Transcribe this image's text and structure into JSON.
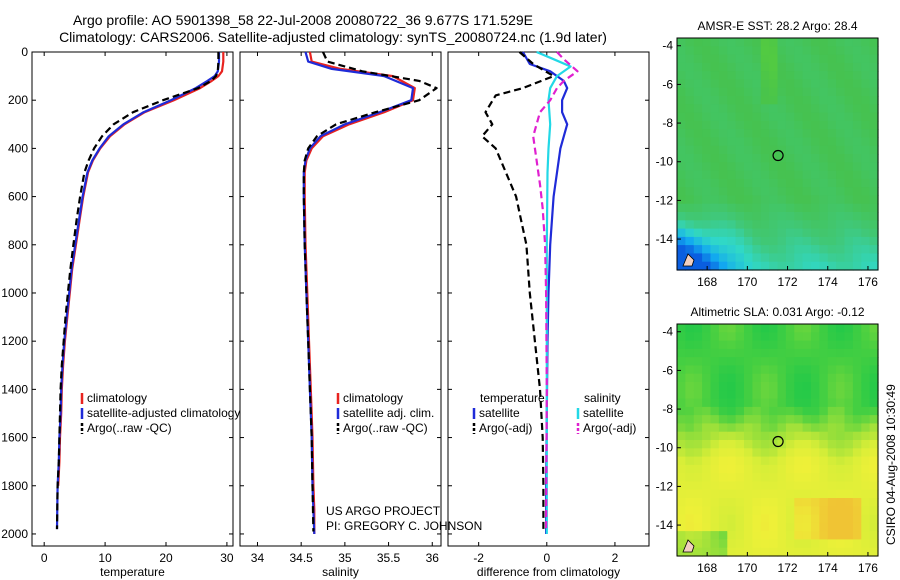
{
  "header": {
    "line1": "Argo profile: AO 5901398_58 22-Jul-2008 20080722_36 9.677S 171.529E",
    "line2": "Climatology: CARS2006. Satellite-adjusted climatology: synTS_20080724.nc (1.9d later)"
  },
  "colors": {
    "climatology": "#e8231f",
    "satellite": "#1f2bd8",
    "argo": "#000000",
    "satellite_salinity": "#22d8e6",
    "argo_adj_salinity": "#e020d0"
  },
  "chart_data": [
    {
      "type": "line",
      "id": "temperature",
      "xlabel": "temperature",
      "ylabel": "",
      "xlim": [
        -2,
        31
      ],
      "ylim": [
        2050,
        0
      ],
      "xticks": [
        0,
        10,
        20,
        30
      ],
      "yticks": [
        0,
        200,
        400,
        600,
        800,
        1000,
        1200,
        1400,
        1600,
        1800,
        2000
      ],
      "legend": [
        "climatology",
        "satellite-adjusted climatology",
        "Argo(..raw -QC)"
      ],
      "series": [
        {
          "name": "climatology",
          "color": "climatology",
          "dash": false,
          "x": [
            29.4,
            29.4,
            29.2,
            28.6,
            27.5,
            25.6,
            21.3,
            16.5,
            13.2,
            10.8,
            9.2,
            8.0,
            7.2,
            6.4,
            5.8,
            5.2,
            4.6,
            4.2,
            3.8,
            3.4,
            3.1,
            2.9,
            2.8,
            2.6,
            2.5,
            2.3
          ],
          "y": [
            0,
            40,
            80,
            100,
            120,
            150,
            200,
            250,
            300,
            350,
            400,
            450,
            500,
            600,
            700,
            800,
            900,
            1000,
            1100,
            1200,
            1300,
            1400,
            1500,
            1600,
            1700,
            1800
          ]
        },
        {
          "name": "satellite-adjusted climatology",
          "color": "satellite",
          "dash": false,
          "x": [
            28.7,
            28.7,
            28.5,
            28.0,
            26.8,
            24.9,
            20.8,
            16.3,
            13.0,
            10.6,
            9.1,
            7.9,
            7.1,
            6.3,
            5.7,
            5.1,
            4.5,
            4.1,
            3.7,
            3.3,
            3.0,
            2.8,
            2.7,
            2.5,
            2.4,
            2.2,
            2.1
          ],
          "y": [
            0,
            40,
            80,
            100,
            120,
            150,
            200,
            250,
            300,
            350,
            400,
            450,
            500,
            600,
            700,
            800,
            900,
            1000,
            1100,
            1200,
            1300,
            1400,
            1500,
            1600,
            1700,
            1800,
            1980
          ]
        },
        {
          "name": "Argo(..raw -QC)",
          "color": "argo",
          "dash": true,
          "x": [
            28.6,
            28.6,
            28.5,
            28.2,
            27.4,
            25.3,
            19.5,
            14.6,
            11.4,
            9.5,
            8.2,
            7.3,
            6.6,
            5.9,
            5.3,
            4.8,
            4.3,
            3.9,
            3.5,
            3.2,
            2.9,
            2.7,
            2.6,
            2.5,
            2.4,
            2.2,
            2.1
          ],
          "y": [
            0,
            40,
            80,
            100,
            120,
            150,
            200,
            250,
            300,
            350,
            400,
            450,
            500,
            600,
            700,
            800,
            900,
            1000,
            1100,
            1200,
            1300,
            1400,
            1500,
            1600,
            1700,
            1800,
            1980
          ]
        }
      ]
    },
    {
      "type": "line",
      "id": "salinity",
      "xlabel": "salinity",
      "ylabel": "",
      "xlim": [
        33.8,
        36.1
      ],
      "ylim": [
        2050,
        0
      ],
      "xticks": [
        34,
        34.5,
        35,
        35.5,
        36
      ],
      "yticks": [
        0,
        200,
        400,
        600,
        800,
        1000,
        1200,
        1400,
        1600,
        1800,
        2000
      ],
      "legend": [
        "climatology",
        "satellite adj. clim.",
        "Argo(..raw -QC)"
      ],
      "annotation": [
        "US ARGO PROJECT",
        "PI: GREGORY C. JOHNSON"
      ],
      "series": [
        {
          "name": "climatology",
          "color": "climatology",
          "dash": false,
          "x": [
            34.6,
            34.62,
            34.95,
            35.55,
            35.8,
            35.78,
            35.45,
            35.05,
            34.75,
            34.62,
            34.56,
            34.54,
            34.54,
            34.55,
            34.57,
            34.59,
            34.61,
            34.63,
            34.64,
            34.65,
            34.65
          ],
          "y": [
            0,
            40,
            70,
            100,
            150,
            200,
            250,
            300,
            350,
            400,
            450,
            500,
            600,
            800,
            1000,
            1200,
            1400,
            1600,
            1800,
            1900,
            2000
          ]
        },
        {
          "name": "satellite adj. clim.",
          "color": "satellite",
          "dash": false,
          "x": [
            34.55,
            34.58,
            34.85,
            35.45,
            35.78,
            35.76,
            35.4,
            35.0,
            34.72,
            34.6,
            34.55,
            34.53,
            34.53,
            34.54,
            34.56,
            34.58,
            34.6,
            34.62,
            34.63,
            34.64,
            34.65
          ],
          "y": [
            0,
            40,
            70,
            100,
            150,
            200,
            250,
            300,
            350,
            400,
            450,
            500,
            600,
            800,
            1000,
            1200,
            1400,
            1600,
            1800,
            1900,
            2000
          ]
        },
        {
          "name": "Argo(..raw -QC)",
          "color": "argo",
          "dash": true,
          "x": [
            34.75,
            34.8,
            35.2,
            35.85,
            36.05,
            35.85,
            35.35,
            34.9,
            34.68,
            34.58,
            34.54,
            34.53,
            34.53,
            34.54,
            34.56,
            34.58,
            34.6,
            34.62,
            34.63,
            34.64
          ],
          "y": [
            0,
            40,
            80,
            120,
            150,
            200,
            250,
            300,
            350,
            400,
            450,
            500,
            600,
            800,
            1000,
            1200,
            1400,
            1600,
            1800,
            1990
          ]
        }
      ]
    },
    {
      "type": "line",
      "id": "difference",
      "xlabel": "difference from climatology",
      "ylabel": "",
      "xlim": [
        -2.9,
        3.0
      ],
      "ylim": [
        2050,
        0
      ],
      "xticks": [
        -2,
        0,
        2
      ],
      "yticks": [
        0,
        200,
        400,
        600,
        800,
        1000,
        1200,
        1400,
        1600,
        1800,
        2000
      ],
      "legend_columns": [
        {
          "heading": "temperature",
          "items": [
            "satellite",
            "Argo(-adj)"
          ]
        },
        {
          "heading": "salinity",
          "items": [
            "satellite",
            "Argo(-adj)"
          ]
        }
      ],
      "series": [
        {
          "name": "temperature satellite",
          "color": "satellite",
          "dash": false,
          "x": [
            -0.7,
            -0.5,
            0.1,
            0.5,
            0.6,
            0.45,
            0.45,
            0.6,
            0.5,
            0.4,
            0.3,
            0.2,
            0.1,
            0.05,
            0.02,
            0.0,
            -0.02,
            -0.02
          ],
          "y": [
            0,
            50,
            80,
            120,
            150,
            200,
            250,
            300,
            350,
            400,
            500,
            600,
            800,
            1000,
            1200,
            1500,
            1800,
            2000
          ]
        },
        {
          "name": "temperature Argo(-adj)",
          "color": "argo",
          "dash": true,
          "x": [
            -0.8,
            -0.4,
            0.2,
            -0.7,
            -1.5,
            -1.8,
            -1.6,
            -1.9,
            -1.5,
            -1.2,
            -0.9,
            -0.75,
            -0.6,
            -0.5,
            -0.35,
            -0.2,
            -0.12,
            -0.1,
            -0.1
          ],
          "y": [
            0,
            50,
            100,
            150,
            180,
            250,
            300,
            350,
            400,
            500,
            600,
            700,
            800,
            1000,
            1200,
            1400,
            1600,
            1800,
            1990
          ]
        },
        {
          "name": "salinity satellite",
          "color": "satellite_salinity",
          "dash": false,
          "x": [
            -0.3,
            0.2,
            0.7,
            0.3,
            0.1,
            0.05,
            0.1,
            0.05,
            0.02,
            0.0,
            0.0,
            0.0,
            0.0
          ],
          "y": [
            0,
            30,
            60,
            100,
            150,
            200,
            300,
            400,
            500,
            800,
            1200,
            1600,
            2000
          ]
        },
        {
          "name": "salinity Argo(-adj)",
          "color": "argo_adj_salinity",
          "dash": true,
          "x": [
            0.3,
            0.5,
            0.9,
            0.5,
            0.3,
            0.1,
            -0.2,
            -0.4,
            -0.3,
            -0.2,
            -0.12,
            -0.05,
            -0.02,
            0.0,
            -0.02
          ],
          "y": [
            0,
            30,
            80,
            120,
            150,
            200,
            250,
            350,
            450,
            550,
            650,
            800,
            1000,
            1400,
            1990
          ]
        }
      ]
    },
    {
      "type": "heatmap",
      "id": "sst-map",
      "title": "AMSR-E SST: 28.2 Argo: 28.4",
      "xlim": [
        166.5,
        176.5
      ],
      "ylim": [
        -15.6,
        -3.6
      ],
      "xticks": [
        168,
        170,
        172,
        174,
        176
      ],
      "yticks": [
        -4,
        -6,
        -8,
        -10,
        -12,
        -14
      ],
      "marker": {
        "lon": 171.529,
        "lat": -9.677
      },
      "color_scale": [
        "#0a5ee0",
        "#12a8f0",
        "#30d8c8",
        "#40c878",
        "#46c24e",
        "#5cd038"
      ]
    },
    {
      "type": "heatmap",
      "id": "sla-map",
      "title": "Altimetric SLA: 0.031 Argo: -0.12",
      "xlim": [
        166.5,
        176.5
      ],
      "ylim": [
        -15.6,
        -3.6
      ],
      "xticks": [
        168,
        170,
        172,
        174,
        176
      ],
      "yticks": [
        -4,
        -6,
        -8,
        -10,
        -12,
        -14
      ],
      "marker": {
        "lon": 171.529,
        "lat": -9.677
      },
      "color_scale": [
        "#1ec84a",
        "#4cd040",
        "#9ce03a",
        "#d8ee38",
        "#eef038",
        "#f0c434"
      ]
    }
  ],
  "footer": {
    "stamp": "CSIRO 04-Aug-2008 10:30:49"
  }
}
